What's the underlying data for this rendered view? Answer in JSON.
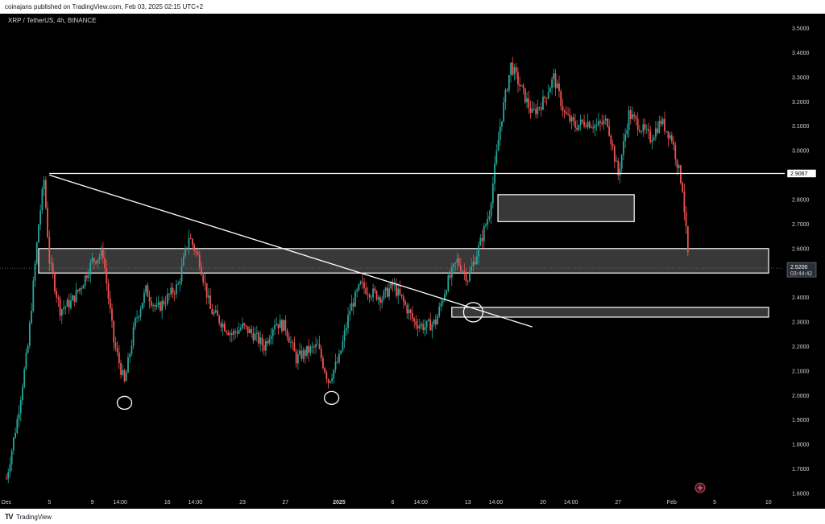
{
  "publisher_line": "coinajans published on TradingView.com, Feb 03, 2025 02:15 UTC+2",
  "symbol_line": "XRP / TetherUS, 4h, BINANCE",
  "footer_brand": "TradingView",
  "footer_logo": "TV",
  "colors": {
    "up": "#26a69a",
    "down": "#ef5350",
    "background": "#000000",
    "axis_text": "#d1d4dc",
    "drawing": "#ffffff"
  },
  "chart_data": {
    "type": "candlestick",
    "y_axis": {
      "min": 1.6,
      "max": 3.5,
      "step": 0.1,
      "ticks": [
        "3.5000",
        "3.4000",
        "3.3000",
        "3.2000",
        "3.1000",
        "3.0000",
        "2.9000",
        "2.8000",
        "2.7000",
        "2.6000",
        "2.5000",
        "2.4000",
        "2.3000",
        "2.2000",
        "2.1000",
        "2.0000",
        "1.9000",
        "1.8000",
        "1.7000",
        "1.6000"
      ]
    },
    "x_axis": {
      "labels": [
        {
          "text": "Dec",
          "day": 0,
          "bold": false
        },
        {
          "text": "5",
          "day": 4,
          "bold": false
        },
        {
          "text": "9",
          "day": 8,
          "bold": false
        },
        {
          "text": "14:00",
          "day": 10.6,
          "bold": false
        },
        {
          "text": "16",
          "day": 15,
          "bold": false
        },
        {
          "text": "14:00",
          "day": 17.6,
          "bold": false
        },
        {
          "text": "23",
          "day": 22,
          "bold": false
        },
        {
          "text": "27",
          "day": 26,
          "bold": false
        },
        {
          "text": "2025",
          "day": 31,
          "bold": true
        },
        {
          "text": "6",
          "day": 36,
          "bold": false
        },
        {
          "text": "14:00",
          "day": 38.6,
          "bold": false
        },
        {
          "text": "13",
          "day": 43,
          "bold": false
        },
        {
          "text": "14:00",
          "day": 45.6,
          "bold": false
        },
        {
          "text": "20",
          "day": 50,
          "bold": false
        },
        {
          "text": "14:00",
          "day": 52.6,
          "bold": false
        },
        {
          "text": "27",
          "day": 57,
          "bold": false
        },
        {
          "text": "Feb",
          "day": 62,
          "bold": false
        },
        {
          "text": "5",
          "day": 66,
          "bold": false
        },
        {
          "text": "10",
          "day": 71,
          "bold": false
        }
      ]
    },
    "price_points": [
      {
        "day": 0,
        "price": 1.66
      },
      {
        "day": 1,
        "price": 1.9
      },
      {
        "day": 2,
        "price": 2.2
      },
      {
        "day": 3,
        "price": 2.7
      },
      {
        "day": 3.5,
        "price": 2.88
      },
      {
        "day": 4,
        "price": 2.55
      },
      {
        "day": 5,
        "price": 2.35
      },
      {
        "day": 6,
        "price": 2.38
      },
      {
        "day": 7,
        "price": 2.45
      },
      {
        "day": 8,
        "price": 2.55
      },
      {
        "day": 9,
        "price": 2.58
      },
      {
        "day": 10,
        "price": 2.22
      },
      {
        "day": 11,
        "price": 2.05
      },
      {
        "day": 12,
        "price": 2.3
      },
      {
        "day": 13,
        "price": 2.43
      },
      {
        "day": 14,
        "price": 2.35
      },
      {
        "day": 15,
        "price": 2.4
      },
      {
        "day": 16,
        "price": 2.45
      },
      {
        "day": 17,
        "price": 2.65
      },
      {
        "day": 18,
        "price": 2.55
      },
      {
        "day": 19,
        "price": 2.35
      },
      {
        "day": 20,
        "price": 2.3
      },
      {
        "day": 21,
        "price": 2.25
      },
      {
        "day": 22,
        "price": 2.28
      },
      {
        "day": 23,
        "price": 2.25
      },
      {
        "day": 24,
        "price": 2.2
      },
      {
        "day": 25,
        "price": 2.3
      },
      {
        "day": 26,
        "price": 2.28
      },
      {
        "day": 27,
        "price": 2.15
      },
      {
        "day": 28,
        "price": 2.18
      },
      {
        "day": 29,
        "price": 2.2
      },
      {
        "day": 30,
        "price": 2.06
      },
      {
        "day": 31,
        "price": 2.15
      },
      {
        "day": 32,
        "price": 2.35
      },
      {
        "day": 33,
        "price": 2.45
      },
      {
        "day": 34,
        "price": 2.42
      },
      {
        "day": 35,
        "price": 2.4
      },
      {
        "day": 36,
        "price": 2.45
      },
      {
        "day": 37,
        "price": 2.38
      },
      {
        "day": 38,
        "price": 2.3
      },
      {
        "day": 39,
        "price": 2.28
      },
      {
        "day": 40,
        "price": 2.3
      },
      {
        "day": 41,
        "price": 2.45
      },
      {
        "day": 42,
        "price": 2.55
      },
      {
        "day": 43,
        "price": 2.48
      },
      {
        "day": 44,
        "price": 2.6
      },
      {
        "day": 45,
        "price": 2.75
      },
      {
        "day": 46,
        "price": 3.1
      },
      {
        "day": 47,
        "price": 3.35
      },
      {
        "day": 48,
        "price": 3.25
      },
      {
        "day": 49,
        "price": 3.15
      },
      {
        "day": 50,
        "price": 3.2
      },
      {
        "day": 51,
        "price": 3.3
      },
      {
        "day": 52,
        "price": 3.15
      },
      {
        "day": 53,
        "price": 3.1
      },
      {
        "day": 54,
        "price": 3.12
      },
      {
        "day": 55,
        "price": 3.1
      },
      {
        "day": 56,
        "price": 3.12
      },
      {
        "day": 57,
        "price": 2.9
      },
      {
        "day": 58,
        "price": 3.15
      },
      {
        "day": 59,
        "price": 3.1
      },
      {
        "day": 60,
        "price": 3.05
      },
      {
        "day": 61,
        "price": 3.12
      },
      {
        "day": 62,
        "price": 3.05
      },
      {
        "day": 63,
        "price": 2.85
      },
      {
        "day": 63.6,
        "price": 2.52
      }
    ],
    "zones": [
      {
        "name": "zone-2.50-2.60",
        "day_start": 3,
        "day_end": 71.2,
        "price_low": 2.5,
        "price_high": 2.6
      },
      {
        "name": "zone-2.71-2.82",
        "day_start": 45.8,
        "day_end": 58.5,
        "price_low": 2.71,
        "price_high": 2.82
      },
      {
        "name": "zone-2.32-2.36",
        "day_start": 41.5,
        "day_end": 71.2,
        "price_low": 2.32,
        "price_high": 2.36
      }
    ],
    "horizontal_line": {
      "price": 2.9067,
      "day_start": 4,
      "label": "2.9067"
    },
    "trendline": {
      "day_start": 4,
      "price_start": 2.9,
      "day_end": 49,
      "price_end": 2.28
    },
    "annotations": [
      {
        "name": "swing-low-circle-1",
        "day": 11,
        "price": 1.97
      },
      {
        "name": "swing-low-circle-2",
        "day": 30.3,
        "price": 1.99
      },
      {
        "name": "retest-circle",
        "day": 43.5,
        "price": 2.34
      }
    ],
    "last_price": {
      "value": "2.5200",
      "countdown": "03:44:42",
      "price": 2.52
    }
  }
}
